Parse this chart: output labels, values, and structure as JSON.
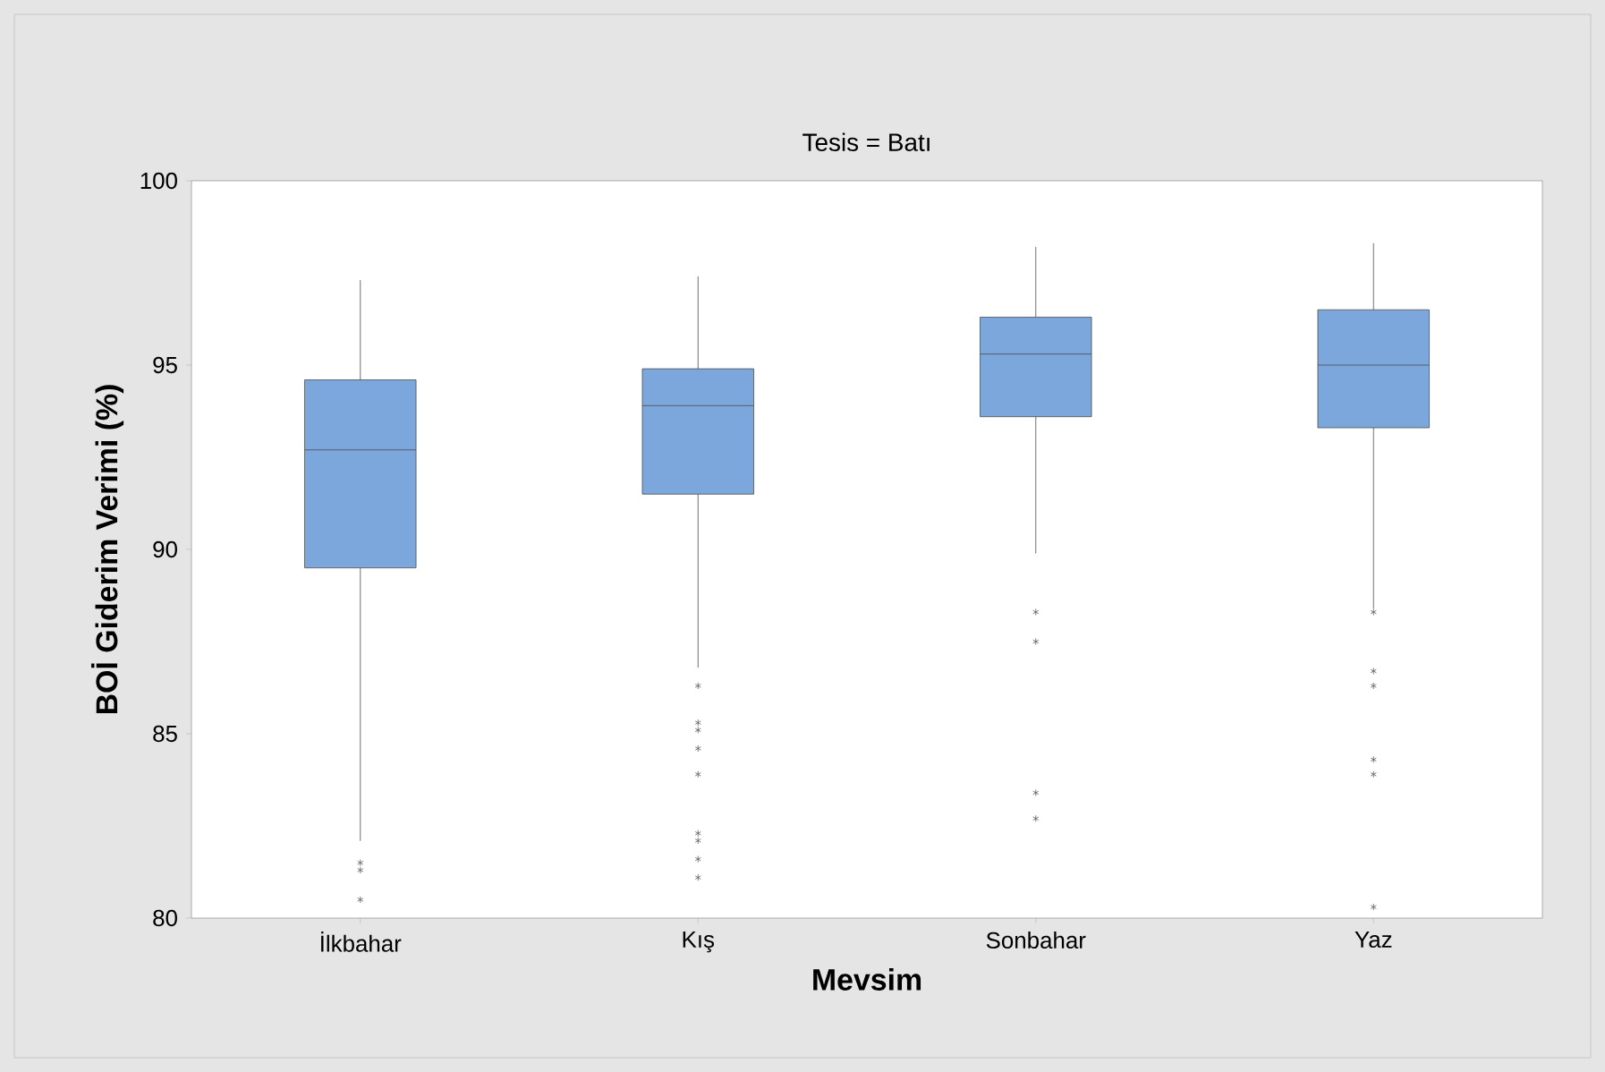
{
  "chart_data": {
    "type": "box",
    "title": "Tesis = Batı",
    "xlabel": "Mevsim",
    "ylabel": "BOİ Giderim Verimi (%)",
    "categories": [
      "İlkbahar",
      "Kış",
      "Sonbahar",
      "Yaz"
    ],
    "ylim": [
      80,
      100
    ],
    "yticks": [
      80,
      85,
      90,
      95,
      100
    ],
    "series": [
      {
        "color": "#7ba7dc",
        "boxes": [
          {
            "low": 82.1,
            "q1": 89.5,
            "median": 92.7,
            "q3": 94.6,
            "high": 97.3,
            "outliers": [
              81.5,
              81.3,
              80.5
            ]
          },
          {
            "low": 86.8,
            "q1": 91.5,
            "median": 93.9,
            "q3": 94.9,
            "high": 97.4,
            "outliers": [
              86.3,
              85.3,
              85.1,
              84.6,
              83.9,
              82.3,
              82.1,
              81.6,
              81.1
            ]
          },
          {
            "low": 89.9,
            "q1": 93.6,
            "median": 95.3,
            "q3": 96.3,
            "high": 98.2,
            "outliers": [
              88.3,
              87.5,
              83.4,
              82.7
            ]
          },
          {
            "low": 88.4,
            "q1": 93.3,
            "median": 95.0,
            "q3": 96.5,
            "high": 98.3,
            "outliers": [
              88.3,
              86.7,
              86.3,
              84.3,
              83.9,
              80.3
            ]
          }
        ]
      }
    ]
  }
}
